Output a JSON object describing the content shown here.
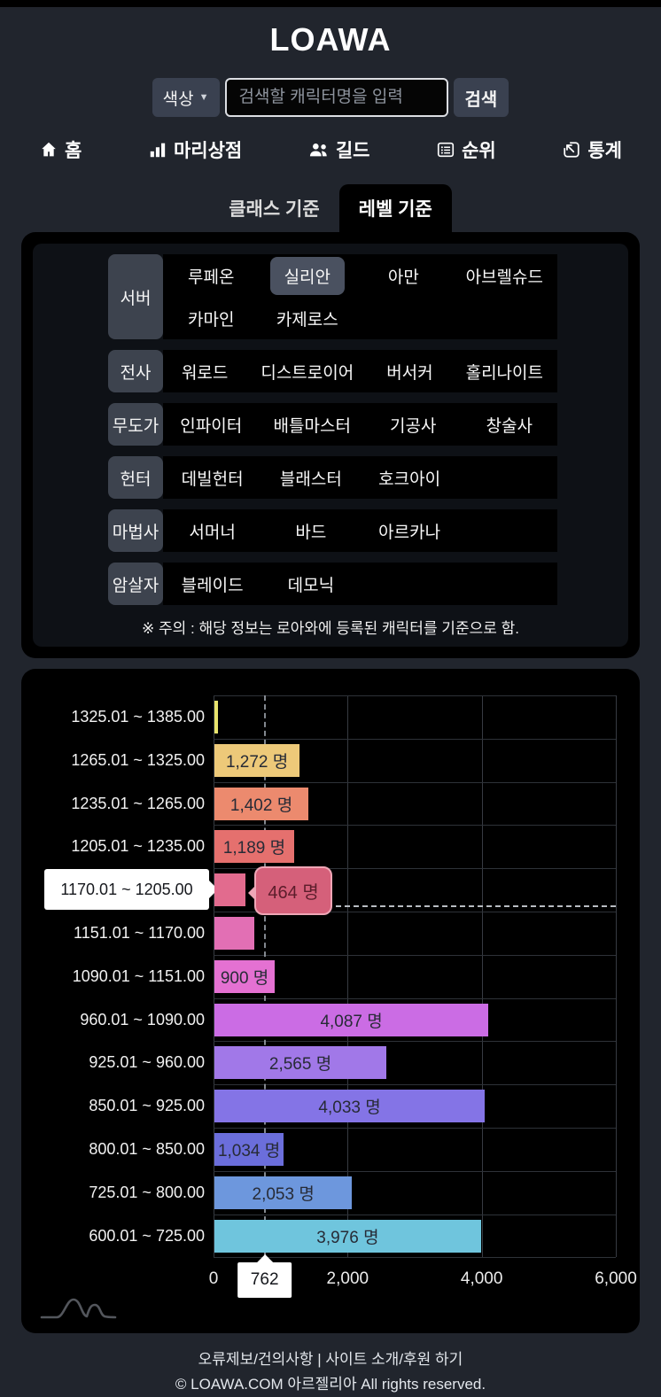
{
  "header": {
    "logo": "LOAWA"
  },
  "search": {
    "color_button": "색상",
    "dropdown_arrow": "▼",
    "placeholder": "검색할 캐릭터명을 입력",
    "submit": "검색"
  },
  "nav": {
    "items": [
      {
        "label": "홈",
        "icon": "home-icon"
      },
      {
        "label": "마리상점",
        "icon": "bar-chart-icon"
      },
      {
        "label": "길드",
        "icon": "people-icon"
      },
      {
        "label": "순위",
        "icon": "ranking-list-icon"
      },
      {
        "label": "통계",
        "icon": "stats-arrow-icon"
      }
    ]
  },
  "tabs": {
    "items": [
      {
        "label": "클래스 기준",
        "active": false
      },
      {
        "label": "레벨 기준",
        "active": true
      }
    ]
  },
  "filters": {
    "groups": [
      {
        "label": "서버",
        "options": [
          {
            "label": "루페온",
            "selected": false
          },
          {
            "label": "실리안",
            "selected": true
          },
          {
            "label": "아만",
            "selected": false
          },
          {
            "label": "아브렐슈드",
            "selected": false
          },
          {
            "label": "카마인",
            "selected": false
          },
          {
            "label": "카제로스",
            "selected": false
          }
        ]
      },
      {
        "label": "전사",
        "options": [
          {
            "label": "워로드",
            "selected": false
          },
          {
            "label": "디스트로이어",
            "selected": false
          },
          {
            "label": "버서커",
            "selected": false
          },
          {
            "label": "홀리나이트",
            "selected": false
          }
        ]
      },
      {
        "label": "무도가",
        "options": [
          {
            "label": "인파이터",
            "selected": false
          },
          {
            "label": "배틀마스터",
            "selected": false
          },
          {
            "label": "기공사",
            "selected": false
          },
          {
            "label": "창술사",
            "selected": false
          }
        ]
      },
      {
        "label": "헌터",
        "options": [
          {
            "label": "데빌헌터",
            "selected": false
          },
          {
            "label": "블래스터",
            "selected": false
          },
          {
            "label": "호크아이",
            "selected": false
          }
        ]
      },
      {
        "label": "마법사",
        "options": [
          {
            "label": "서머너",
            "selected": false
          },
          {
            "label": "바드",
            "selected": false
          },
          {
            "label": "아르카나",
            "selected": false
          }
        ]
      },
      {
        "label": "암살자",
        "options": [
          {
            "label": "블레이드",
            "selected": false
          },
          {
            "label": "데모닉",
            "selected": false
          }
        ]
      }
    ],
    "note": "※ 주의 : 해당 정보는 로아와에 등록된 캐릭터를 기준으로 함."
  },
  "chart_data": {
    "type": "bar",
    "orientation": "horizontal",
    "title": "",
    "xlabel": "",
    "ylabel": "",
    "xlim": [
      0,
      6000
    ],
    "grid": true,
    "categories": [
      "1325.01 ~ 1385.00",
      "1265.01 ~ 1325.00",
      "1235.01 ~ 1265.00",
      "1205.01 ~ 1235.00",
      "1170.01 ~ 1205.00",
      "1151.01 ~ 1170.00",
      "1090.01 ~ 1151.00",
      "960.01 ~ 1090.00",
      "925.01 ~ 960.00",
      "850.01 ~ 925.00",
      "800.01 ~ 850.00",
      "725.01 ~ 800.00",
      "600.01 ~ 725.00"
    ],
    "values": [
      53,
      1272,
      1402,
      1189,
      464,
      595,
      900,
      4087,
      2565,
      4033,
      1034,
      2053,
      3976
    ],
    "values_estimated_indices": [
      0,
      5
    ],
    "bar_labels": [
      "",
      "1,272 명",
      "1,402 명",
      "1,189 명",
      "",
      "",
      "900 명",
      "4,087 명",
      "2,565 명",
      "4,033 명",
      "1,034 명",
      "2,053 명",
      "3,976 명"
    ],
    "colors": [
      "#e9e46d",
      "#edc979",
      "#ec8a6e",
      "#e5706e",
      "#e26b8e",
      "#e26fb4",
      "#e471d2",
      "#cb6ce4",
      "#a178e8",
      "#8474e6",
      "#6b6edb",
      "#6d97dd",
      "#6fc5dd"
    ],
    "x_ticks": [
      {
        "label": "0",
        "value": 0
      },
      {
        "label": "2,000",
        "value": 2000
      },
      {
        "label": "4,000",
        "value": 4000
      },
      {
        "label": "6,000",
        "value": 6000
      }
    ],
    "reference_line": {
      "value": 762,
      "label": "762"
    },
    "highlight": {
      "index": 4,
      "category": "1170.01 ~ 1205.00",
      "tooltip": "464 명",
      "tooltip_bg": "#d5607a",
      "tooltip_border": "#efa6b6",
      "tooltip_text_color": "#5c1d2b"
    },
    "legend": null
  },
  "footer": {
    "link1": "오류제보/건의사항",
    "separator": "|",
    "link2": "사이트 소개/후원 하기",
    "copyright": "© LOAWA.COM 아르젤리아 All rights reserved."
  }
}
